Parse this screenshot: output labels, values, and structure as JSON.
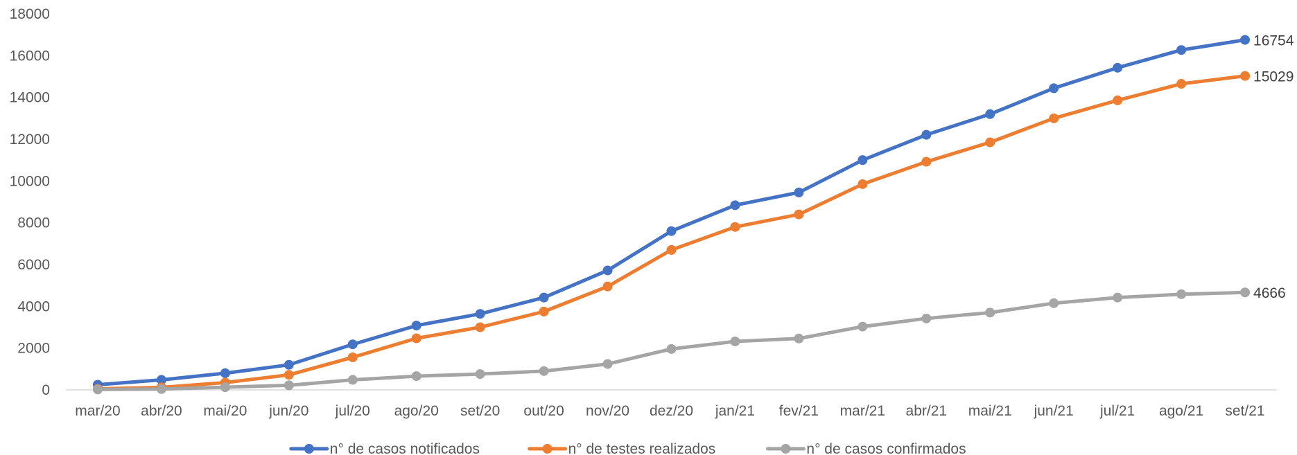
{
  "chart_data": {
    "type": "line",
    "categories": [
      "mar/20",
      "abr/20",
      "mai/20",
      "jun/20",
      "jul/20",
      "ago/20",
      "set/20",
      "out/20",
      "nov/20",
      "dez/20",
      "jan/21",
      "fev/21",
      "mar/21",
      "abr/21",
      "mai/21",
      "jun/21",
      "jul/21",
      "ago/21",
      "set/21"
    ],
    "ylim": [
      0,
      18000
    ],
    "yticks": [
      "0",
      "2000",
      "4000",
      "6000",
      "8000",
      "10000",
      "12000",
      "14000",
      "16000",
      "18000"
    ],
    "grid": "horizontal-baseline-only",
    "legend_position": "bottom",
    "series": [
      {
        "name": "n° de casos notificados",
        "color": "#4472C4",
        "values": [
          250,
          480,
          800,
          1200,
          2180,
          3080,
          3640,
          4420,
          5720,
          7600,
          8840,
          9450,
          11000,
          12210,
          13200,
          14440,
          15420,
          16270,
          16754
        ],
        "end_label": "16754"
      },
      {
        "name": "n° de testes realizados",
        "color": "#ED7D31",
        "values": [
          50,
          120,
          350,
          720,
          1560,
          2470,
          3000,
          3750,
          4950,
          6700,
          7800,
          8400,
          9850,
          10920,
          11850,
          13000,
          13860,
          14650,
          15029
        ],
        "end_label": "15029"
      },
      {
        "name": "n° de casos confirmados",
        "color": "#A5A5A5",
        "values": [
          20,
          40,
          130,
          220,
          480,
          660,
          760,
          900,
          1240,
          1960,
          2320,
          2460,
          3030,
          3420,
          3700,
          4150,
          4420,
          4580,
          4666
        ],
        "end_label": "4666"
      }
    ]
  }
}
